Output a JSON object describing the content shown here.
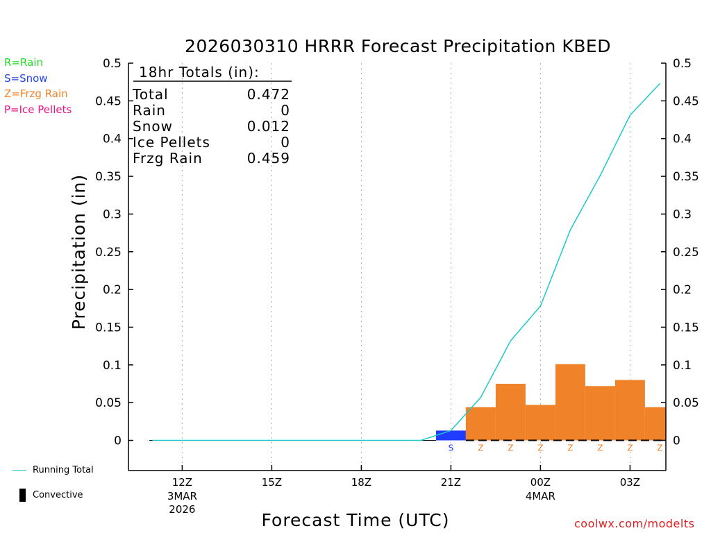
{
  "chart_data": {
    "type": "bar",
    "title": "2026030310 HRRR Forecast Precipitation KBED",
    "xlabel": "Forecast Time (UTC)",
    "ylabel": "Precipitation (in)",
    "ylim": [
      -0.04,
      0.5
    ],
    "yticks": [
      0,
      0.05,
      0.1,
      0.15,
      0.2,
      0.25,
      0.3,
      0.35,
      0.4,
      0.45,
      0.5
    ],
    "ytick_labels": [
      "0",
      "0.05",
      "0.1",
      "0.15",
      "0.2",
      "0.25",
      "0.3",
      "0.35",
      "0.4",
      "0.45",
      "0.5"
    ],
    "xlim_hours": [
      10.2,
      28.2
    ],
    "xticks": [
      {
        "hour": 12,
        "label": "12Z",
        "sub1": "3MAR",
        "sub2": "2026"
      },
      {
        "hour": 15,
        "label": "15Z",
        "sub1": "",
        "sub2": ""
      },
      {
        "hour": 18,
        "label": "18Z",
        "sub1": "",
        "sub2": ""
      },
      {
        "hour": 21,
        "label": "21Z",
        "sub1": "",
        "sub2": ""
      },
      {
        "hour": 24,
        "label": "00Z",
        "sub1": "4MAR",
        "sub2": ""
      },
      {
        "hour": 27,
        "label": "03Z",
        "sub1": "",
        "sub2": ""
      }
    ],
    "bars": [
      {
        "start": 20.5,
        "end": 21.5,
        "value": 0.013,
        "type": "snow",
        "code": "S"
      },
      {
        "start": 21.5,
        "end": 22.5,
        "value": 0.044,
        "type": "frzg",
        "code": "Z"
      },
      {
        "start": 22.5,
        "end": 23.5,
        "value": 0.075,
        "type": "frzg",
        "code": "Z"
      },
      {
        "start": 23.5,
        "end": 24.5,
        "value": 0.047,
        "type": "frzg",
        "code": "Z"
      },
      {
        "start": 24.5,
        "end": 25.5,
        "value": 0.101,
        "type": "frzg",
        "code": "Z"
      },
      {
        "start": 25.5,
        "end": 26.5,
        "value": 0.072,
        "type": "frzg",
        "code": "Z"
      },
      {
        "start": 26.5,
        "end": 27.5,
        "value": 0.08,
        "type": "frzg",
        "code": "Z"
      },
      {
        "start": 27.5,
        "end": 28.5,
        "value": 0.044,
        "type": "frzg",
        "code": "Z"
      }
    ],
    "running_total": {
      "x": [
        11,
        12,
        13,
        14,
        15,
        16,
        17,
        18,
        19,
        20,
        21,
        22,
        23,
        24,
        25,
        26,
        27,
        28
      ],
      "y": [
        0,
        0,
        0,
        0,
        0,
        0,
        0,
        0,
        0,
        0,
        0.013,
        0.057,
        0.132,
        0.178,
        0.279,
        0.351,
        0.431,
        0.473
      ]
    },
    "totals": {
      "heading": "18hr Totals (in):",
      "rows": [
        {
          "label": "Total",
          "value": "0.472"
        },
        {
          "label": "Rain",
          "value": "0"
        },
        {
          "label": "Snow",
          "value": "0.012"
        },
        {
          "label": "Ice Pellets",
          "value": "0"
        },
        {
          "label": "Frzg Rain",
          "value": "0.459"
        }
      ]
    },
    "colors": {
      "snow": "#1f3cff",
      "frzg": "#f0822a",
      "running_total": "#1cc8c8",
      "grid": "#aaaaaa"
    }
  },
  "legend": {
    "rain": {
      "text": "R=Rain",
      "color": "#22dd22"
    },
    "snow": {
      "text": "S=Snow",
      "color": "#2244ee"
    },
    "frzg": {
      "text": "Z=Frzg Rain",
      "color": "#f0822a"
    },
    "pellets": {
      "text": "P=Ice Pellets",
      "color": "#ee1188"
    }
  },
  "footer": {
    "running_total": "Running Total",
    "convective": "Convective",
    "credit": "coolwx.com/modelts",
    "credit_color": "#e02020"
  }
}
